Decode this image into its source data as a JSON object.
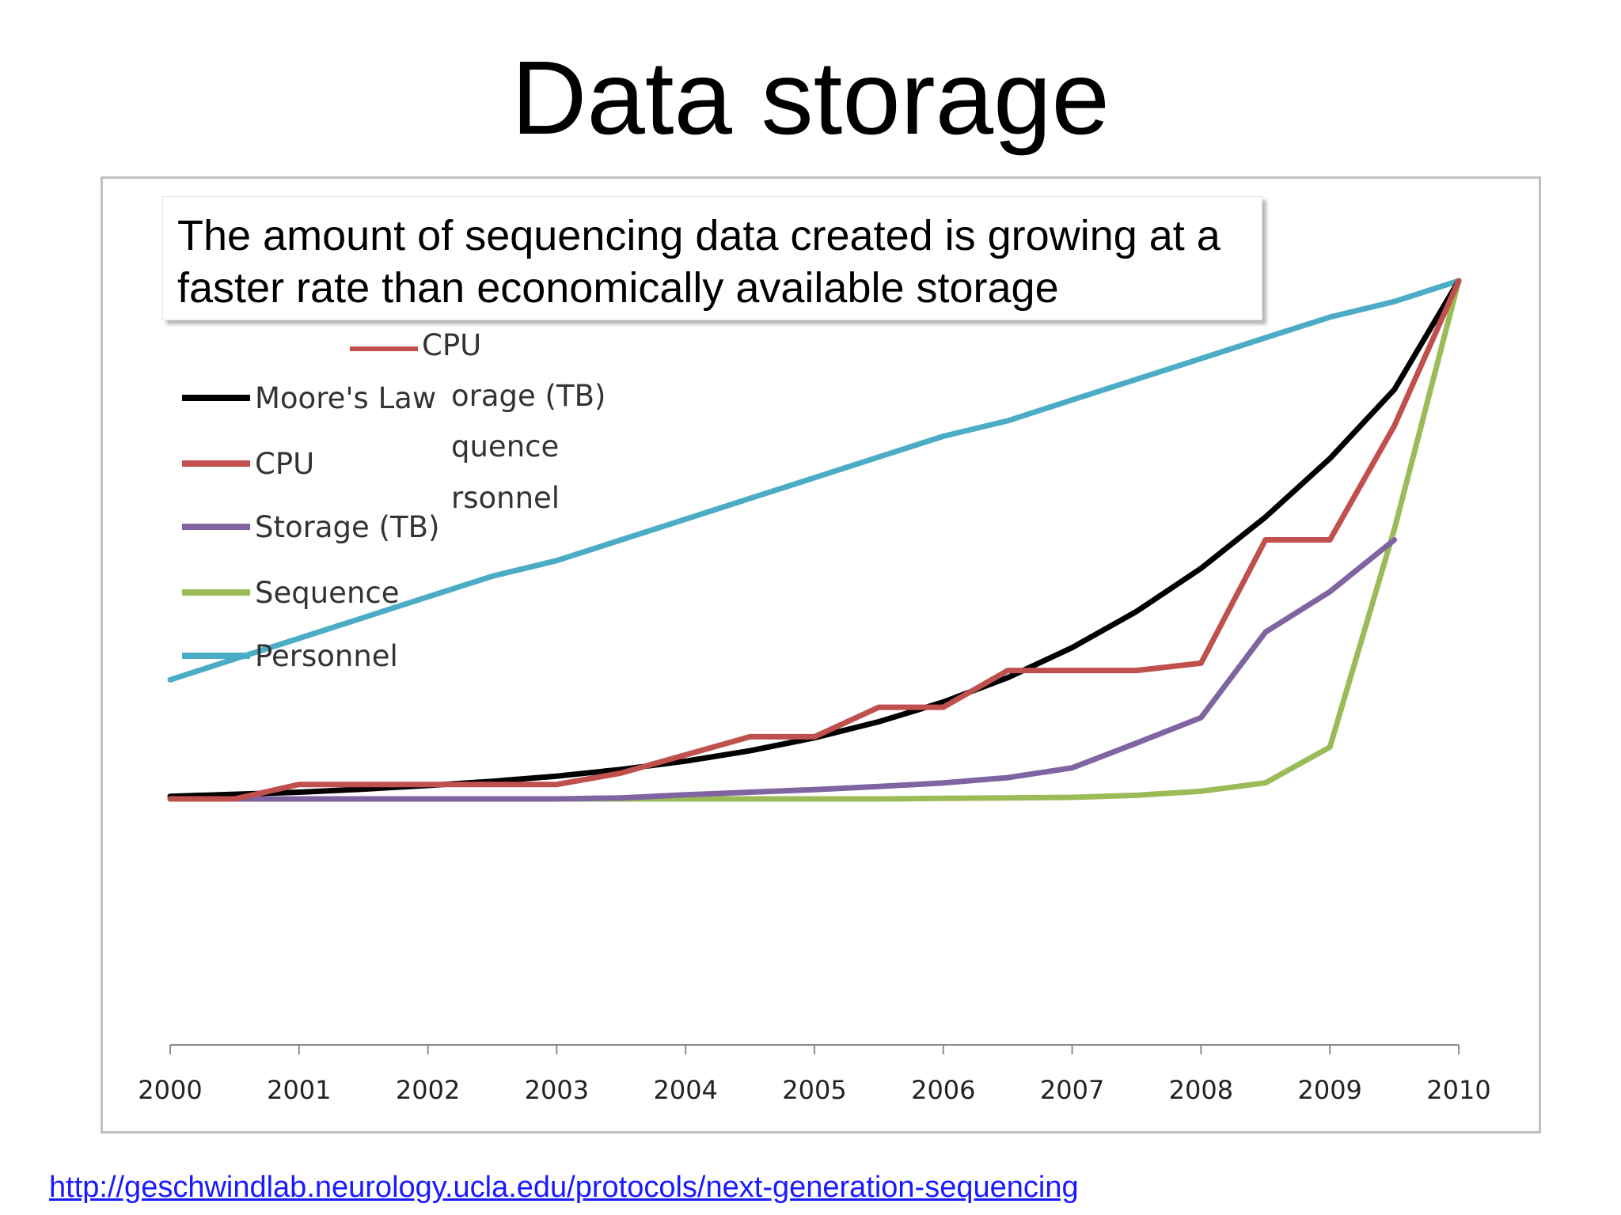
{
  "slide": {
    "title": "Data storage",
    "annotation": "The amount of sequencing data created is growing at a faster rate than economically available storage",
    "source_link": "http://geschwindlab.neurology.ucla.edu/protocols/next-generation-sequencing"
  },
  "chart_data": {
    "type": "line",
    "x": [
      2000,
      2000.5,
      2001,
      2001.5,
      2002,
      2002.5,
      2003,
      2003.5,
      2004,
      2004.5,
      2005,
      2005.5,
      2006,
      2006.5,
      2007,
      2007.5,
      2008,
      2008.5,
      2009,
      2009.5,
      2010
    ],
    "xlim": [
      2000,
      2010
    ],
    "ylim": [
      0,
      1
    ],
    "tick_labels": [
      "2000",
      "2001",
      "2002",
      "2003",
      "2004",
      "2005",
      "2006",
      "2007",
      "2008",
      "2009",
      "2010"
    ],
    "grid": false,
    "legend_position": "top-left",
    "series": [
      {
        "name": "Moore's Law",
        "color": "#000000",
        "values": [
          0.005,
          0.009,
          0.013,
          0.019,
          0.026,
          0.034,
          0.044,
          0.057,
          0.073,
          0.093,
          0.118,
          0.149,
          0.187,
          0.234,
          0.292,
          0.362,
          0.445,
          0.544,
          0.657,
          0.79,
          1.0
        ]
      },
      {
        "name": "CPU",
        "color": "#c0504d",
        "values": [
          0.0,
          0.0,
          0.028,
          0.028,
          0.028,
          0.028,
          0.028,
          0.05,
          0.085,
          0.12,
          0.12,
          0.177,
          0.177,
          0.248,
          0.248,
          0.248,
          0.262,
          0.5,
          0.5,
          0.72,
          1.0
        ]
      },
      {
        "name": "Storage (TB)",
        "color": "#8064a2",
        "values": [
          0.0,
          0.0,
          0.0,
          0.0,
          0.0,
          0.0,
          0.0,
          0.002,
          0.008,
          0.013,
          0.018,
          0.024,
          0.031,
          0.041,
          0.06,
          0.108,
          0.157,
          0.322,
          0.4,
          0.5,
          1.0
        ]
      },
      {
        "name": "Sequence",
        "color": "#9bbb59",
        "values": [
          0.0,
          0.0,
          0.0,
          0.0,
          0.0,
          0.0,
          0.0,
          0.0,
          0.0,
          0.0,
          0.0,
          0.0,
          0.001,
          0.002,
          0.003,
          0.007,
          0.015,
          0.031,
          0.1,
          0.52,
          1.0
        ]
      },
      {
        "name": "Personnel",
        "color": "#4bacc6",
        "values": [
          0.23,
          0.27,
          0.31,
          0.35,
          0.39,
          0.43,
          0.46,
          0.5,
          0.54,
          0.58,
          0.62,
          0.66,
          0.7,
          0.73,
          0.77,
          0.81,
          0.85,
          0.89,
          0.93,
          0.96,
          1.0
        ]
      }
    ],
    "ghost_legend": [
      "CPU",
      "orage (TB)",
      "quence",
      "rsonnel"
    ]
  }
}
